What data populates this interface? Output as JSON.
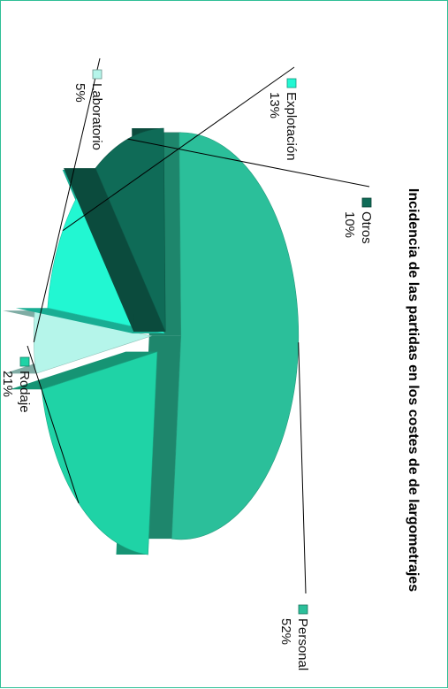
{
  "chart_data": {
    "type": "pie",
    "title": "Incidencia de las partidas en los costes de  de largometrajes",
    "three_d": true,
    "exploded": true,
    "orientation": "rotated 90° clockwise",
    "legend_placement": "labels next to slices",
    "slices": [
      {
        "name": "Personal",
        "pct_label": "52%",
        "value": 52,
        "color": "#2bbf9a"
      },
      {
        "name": "Rodaje",
        "pct_label": "21%",
        "value": 21,
        "color": "#1fd3a6"
      },
      {
        "name": "Laboratorio",
        "pct_label": "5%",
        "value": 5,
        "color": "#b5f5ea"
      },
      {
        "name": "Explotación",
        "pct_label": "13%",
        "value": 13,
        "color": "#22f7d2"
      },
      {
        "name": "Otros",
        "pct_label": "10%",
        "value": 10,
        "color": "#0f6b57"
      }
    ]
  }
}
